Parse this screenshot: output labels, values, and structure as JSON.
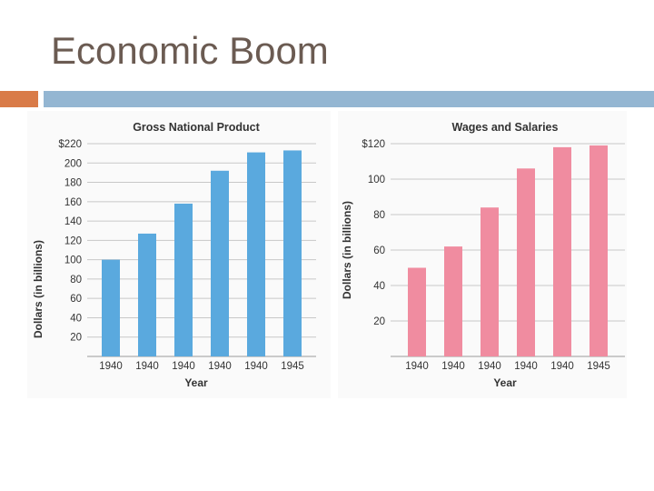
{
  "slide": {
    "title": "Economic Boom"
  },
  "colors": {
    "title": "#6b5b52",
    "accent_orange": "#d97b48",
    "accent_blue": "#94b6d2",
    "gnp_bar": "#5aa9de",
    "wages_bar": "#f08ca0"
  },
  "chart_data": [
    {
      "type": "bar",
      "title": "Gross National Product",
      "xlabel": "Year",
      "ylabel": "Dollars (in billions)",
      "categories": [
        "1940",
        "1940",
        "1940",
        "1940",
        "1940",
        "1945"
      ],
      "values": [
        100,
        127,
        158,
        192,
        211,
        213
      ],
      "ylim": [
        0,
        220
      ],
      "yticks": [
        20,
        40,
        60,
        80,
        100,
        120,
        140,
        160,
        180,
        200,
        220
      ],
      "ytick_labels": [
        "20",
        "40",
        "60",
        "80",
        "100",
        "120",
        "140",
        "160",
        "180",
        "200",
        "$220"
      ],
      "grid": true,
      "color": "#5aa9de"
    },
    {
      "type": "bar",
      "title": "Wages and Salaries",
      "xlabel": "Year",
      "ylabel": "Dollars (in billions)",
      "categories": [
        "1940",
        "1940",
        "1940",
        "1940",
        "1940",
        "1945"
      ],
      "values": [
        50,
        62,
        84,
        106,
        118,
        119
      ],
      "ylim": [
        0,
        120
      ],
      "yticks": [
        20,
        40,
        60,
        80,
        100,
        120
      ],
      "ytick_labels": [
        "20",
        "40",
        "60",
        "80",
        "100",
        "$120"
      ],
      "grid": true,
      "color": "#f08ca0"
    }
  ]
}
